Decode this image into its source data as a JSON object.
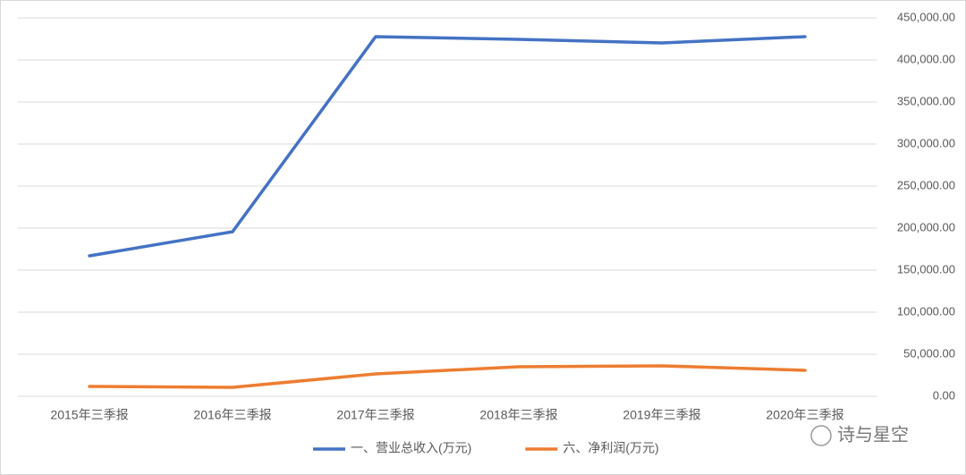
{
  "chart_data": {
    "type": "line",
    "categories": [
      "2015年三季报",
      "2016年三季报",
      "2017年三季报",
      "2018年三季报",
      "2019年三季报",
      "2020年三季报"
    ],
    "series": [
      {
        "name": "一、营业总收入(万元)",
        "color": "#4472c4",
        "values": [
          167000,
          195700,
          427700,
          424500,
          420200,
          427700
        ]
      },
      {
        "name": "六、净利润(万元)",
        "color": "#ed7d31",
        "values": [
          11700,
          10600,
          26600,
          35100,
          36200,
          30900
        ]
      }
    ],
    "ylim": [
      0,
      450000
    ],
    "yticks": [
      {
        "value": 0,
        "label": "0.00"
      },
      {
        "value": 50000,
        "label": "50,000.00"
      },
      {
        "value": 100000,
        "label": "100,000.00"
      },
      {
        "value": 150000,
        "label": "150,000.00"
      },
      {
        "value": 200000,
        "label": "200,000.00"
      },
      {
        "value": 250000,
        "label": "250,000.00"
      },
      {
        "value": 300000,
        "label": "300,000.00"
      },
      {
        "value": 350000,
        "label": "350,000.00"
      },
      {
        "value": 400000,
        "label": "400,000.00"
      },
      {
        "value": 450000,
        "label": "450,000.00"
      }
    ],
    "y_axis_side": "right",
    "grid": true,
    "legend": "bottom"
  },
  "watermark": "诗与星空"
}
